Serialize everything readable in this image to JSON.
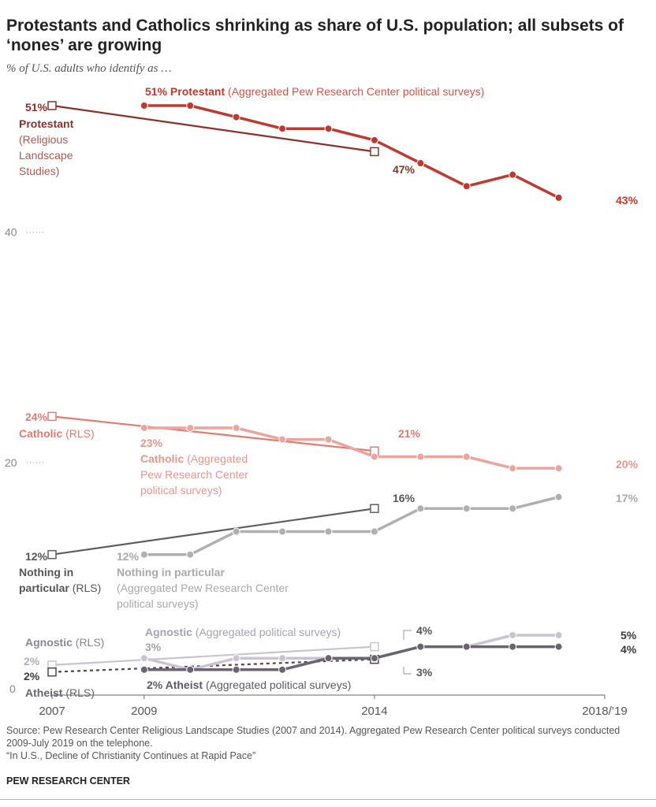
{
  "title": "Protestants and Catholics shrinking as share of U.S. population; all subsets of ‘nones’ are growing",
  "subtitle": "% of U.S. adults who identify as …",
  "source_note": "Source: Pew Research Center Religious Landscape Studies (2007 and 2014). Aggregated Pew Research Center political surveys conducted 2009-July 2019 on the telephone.",
  "report_note": "“In U.S., Decline of Christianity Continues at Rapid Pace”",
  "brand": "PEW RESEARCH CENTER",
  "chart_data": {
    "type": "line",
    "title": "Protestants and Catholics shrinking as share of U.S. population; all subsets of ‘nones’ are growing",
    "subtitle": "% of U.S. adults who identify as …",
    "ylim": [
      0,
      52
    ],
    "y_ticks": [
      0,
      20,
      40
    ],
    "y_tick_labels": [
      "0",
      "20",
      "40"
    ],
    "x_ticks": [
      2007,
      2009,
      2014,
      2019
    ],
    "x_tick_labels": [
      "2007",
      "2009",
      "2014",
      "2018/’19"
    ],
    "grid": false,
    "series": [
      {
        "id": "prot_rls",
        "kind": "rls",
        "x": [
          2007,
          2014
        ],
        "y": [
          51,
          47
        ],
        "color": "#8b3129"
      },
      {
        "id": "prot_agg",
        "kind": "agg",
        "x": [
          2009,
          2010,
          2011,
          2012,
          2013,
          2014,
          2015,
          2016,
          2017,
          2018
        ],
        "y": [
          51,
          51,
          50,
          49,
          49,
          48,
          46,
          44,
          45,
          43
        ],
        "color": "#c0392e"
      },
      {
        "id": "cath_rls",
        "kind": "rls",
        "x": [
          2007,
          2014
        ],
        "y": [
          24,
          21
        ],
        "color": "#e07c72"
      },
      {
        "id": "cath_agg",
        "kind": "agg",
        "x": [
          2009,
          2010,
          2011,
          2012,
          2013,
          2014,
          2015,
          2016,
          2017,
          2018
        ],
        "y": [
          23,
          23,
          23,
          22,
          22,
          20.5,
          20.5,
          20.5,
          19.5,
          19.5
        ],
        "color": "#eda49c"
      },
      {
        "id": "nip_rls",
        "kind": "rls",
        "x": [
          2007,
          2014
        ],
        "y": [
          12,
          16
        ],
        "color": "#5f5f5f"
      },
      {
        "id": "nip_agg",
        "kind": "agg",
        "x": [
          2009,
          2010,
          2011,
          2012,
          2013,
          2014,
          2015,
          2016,
          2017,
          2018
        ],
        "y": [
          12,
          12,
          14,
          14,
          14,
          14,
          16,
          16,
          16,
          17
        ],
        "color": "#b0b0b0"
      },
      {
        "id": "agn_rls",
        "kind": "rls",
        "x": [
          2007,
          2014
        ],
        "y": [
          2.4,
          4
        ],
        "color": "#c9c3d3"
      },
      {
        "id": "agn_agg",
        "kind": "agg",
        "x": [
          2009,
          2010,
          2011,
          2012,
          2013,
          2014,
          2015,
          2016,
          2017,
          2018
        ],
        "y": [
          3,
          2,
          3,
          3,
          3,
          3,
          4,
          4,
          5,
          5
        ],
        "color": "#c9c3d3"
      },
      {
        "id": "ath_rls",
        "kind": "rls",
        "dashed": true,
        "x": [
          2007,
          2014
        ],
        "y": [
          1.8,
          2.9
        ],
        "color": "#4a4a4a"
      },
      {
        "id": "ath_agg",
        "kind": "agg",
        "x": [
          2009,
          2010,
          2011,
          2012,
          2013,
          2014,
          2015,
          2016,
          2017,
          2018
        ],
        "y": [
          2,
          2,
          2,
          2,
          3,
          3,
          4,
          4,
          4,
          4
        ],
        "color": "#6a6470"
      }
    ],
    "annotations": {
      "prot_rls_start": "51%",
      "prot_rls_name": "Protestant",
      "prot_rls_paren": [
        "(Religious",
        "Landscape",
        "Studies)"
      ],
      "prot_rls_end": "47%",
      "prot_agg_start_value": "51% Protestant",
      "prot_agg_start_paren": "(Aggregated Pew Research Center political surveys)",
      "prot_agg_end": "43%",
      "cath_rls_start": "24%",
      "cath_rls_name": "Catholic",
      "cath_rls_paren": "(RLS)",
      "cath_rls_end": "21%",
      "cath_agg_start": "23%",
      "cath_agg_name": "Catholic",
      "cath_agg_paren1": "(Aggregated",
      "cath_agg_paren2": "Pew Research Center",
      "cath_agg_paren3": "political surveys)",
      "cath_agg_end": "20%",
      "nip_rls_start": "12%",
      "nip_rls_name1": "Nothing in",
      "nip_rls_name2": "particular",
      "nip_rls_paren": "(RLS)",
      "nip_rls_end": "16%",
      "nip_agg_start": "12%",
      "nip_agg_name": "Nothing in particular",
      "nip_agg_paren1": "(Aggregated Pew Research Center",
      "nip_agg_paren2": "political surveys)",
      "nip_agg_end": "17%",
      "agn_rls_name": "Agnostic",
      "agn_rls_paren": "(RLS)",
      "agn_rls_start": "2%",
      "agn_rls_end": "4%",
      "agn_agg_name": "Agnostic",
      "agn_agg_paren": "(Aggregated political surveys)",
      "agn_agg_start": "3%",
      "agn_agg_end": "5%",
      "ath_rls_start": "2%",
      "ath_rls_name": "Atheist",
      "ath_rls_paren": "(RLS)",
      "ath_rls_end": "3%",
      "ath_agg_start": "2% Atheist",
      "ath_agg_paren": "(Aggregated political surveys)",
      "ath_agg_end": "4%"
    }
  }
}
